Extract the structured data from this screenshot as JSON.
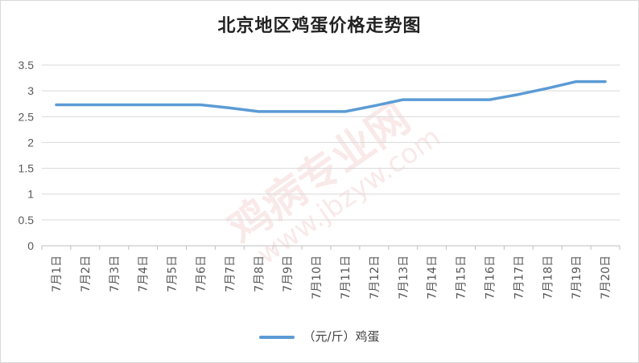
{
  "chart_data": {
    "type": "line",
    "title": "北京地区鸡蛋价格走势图",
    "categories": [
      "7月1日",
      "7月2日",
      "7月3日",
      "7月4日",
      "7月5日",
      "7月6日",
      "7月7日",
      "7月8日",
      "7月9日",
      "7月10日",
      "7月11日",
      "7月12日",
      "7月13日",
      "7月14日",
      "7月15日",
      "7月16日",
      "7月17日",
      "7月18日",
      "7月19日",
      "7月20日"
    ],
    "series": [
      {
        "name": "（元/斤）鸡蛋",
        "color": "#5b9bd5",
        "values": [
          2.73,
          2.73,
          2.73,
          2.73,
          2.73,
          2.73,
          2.67,
          2.6,
          2.6,
          2.6,
          2.6,
          2.71,
          2.83,
          2.83,
          2.83,
          2.83,
          2.93,
          3.05,
          3.18,
          3.18
        ]
      }
    ],
    "yticks": [
      "0",
      "0.5",
      "1",
      "1.5",
      "2",
      "2.5",
      "3",
      "3.5"
    ],
    "ylim": [
      0,
      3.5
    ],
    "grid": true,
    "legend_position": "bottom"
  }
}
